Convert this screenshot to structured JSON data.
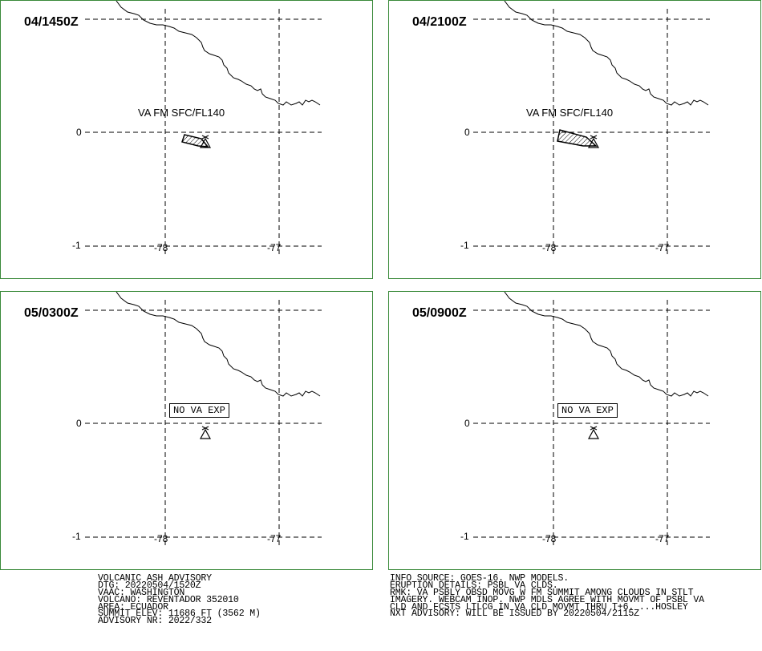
{
  "panels": [
    {
      "time_label": "04/1450Z",
      "cloud_label": "VA FM SFC/FL140",
      "no_va_label": ""
    },
    {
      "time_label": "04/2100Z",
      "cloud_label": "VA FM SFC/FL140",
      "no_va_label": ""
    },
    {
      "time_label": "05/0300Z",
      "cloud_label": "",
      "no_va_label": "NO VA EXP"
    },
    {
      "time_label": "05/0900Z",
      "cloud_label": "",
      "no_va_label": "NO VA EXP"
    }
  ],
  "grid_labels": {
    "lat_0": "0",
    "lat_minus1": "-1",
    "lon_78": "-78",
    "lon_77": "-77"
  },
  "colors": {
    "panel_border": "#3a8a3a",
    "grid": "#000000",
    "coastline": "#000000"
  },
  "advisory_left": [
    "VOLCANIC ASH ADVISORY",
    "DTG: 20220504/1520Z",
    "VAAC: WASHINGTON",
    "VOLCANO: REVENTADOR 352010",
    "AREA: ECUADOR",
    "SUMMIT ELEV: 11686 FT (3562 M)",
    "ADVISORY NR: 2022/332"
  ],
  "advisory_right": [
    "INFO SOURCE: GOES-16. NWP MODELS.",
    "ERUPTION DETAILS: PSBL VA CLDS.",
    "RMK: VA PSBLY OBSD MOVG W FM SUMMIT AMONG CLOUDS IN STLT",
    "IMAGERY. WEBCAM INOP. NWP MDLS AGREE WITH MOVMT OF PSBL VA",
    "CLD AND FCSTS LTLCG IN VA CLD MOVMT THRU T+6. ...HOSLEY",
    "NXT ADVISORY: WILL BE ISSUED BY 20220504/2115Z"
  ]
}
